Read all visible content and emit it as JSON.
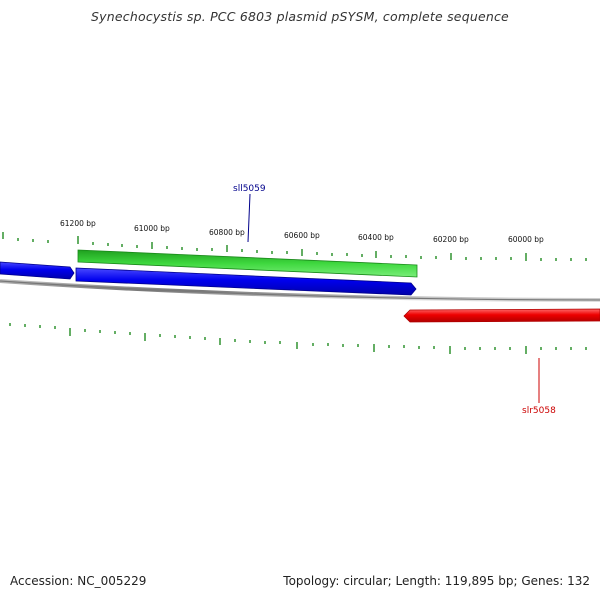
{
  "title": "Synechocystis sp. PCC 6803 plasmid pSYSM, complete sequence",
  "footer": {
    "accession": "Accession: NC_005229",
    "summary": "Topology: circular; Length: 119,895 bp; Genes: 132"
  },
  "map": {
    "tick_labels": [
      "61200 bp",
      "61000 bp",
      "60800 bp",
      "60600 bp",
      "60400 bp",
      "60200 bp",
      "60000 bp"
    ],
    "gene_labels": [
      {
        "name": "sll5059",
        "color": "#00008b"
      },
      {
        "name": "slr5058",
        "color": "#cc0000"
      }
    ],
    "colors": {
      "forward_gene": "#0000ee",
      "reverse_gene": "#ee0000",
      "green_feature": "#2ecc2e",
      "backbone": "#888888",
      "ticks": "#228b22"
    }
  }
}
